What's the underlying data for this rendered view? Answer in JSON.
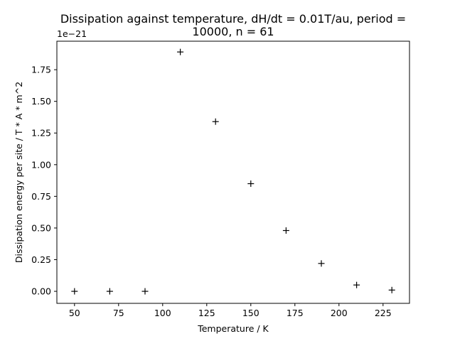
{
  "chart_data": {
    "type": "scatter",
    "title_lines": [
      "Dissipation against temperature, dH/dt = 0.01T/au, period =",
      "10000, n = 61"
    ],
    "xlabel": "Temperature / K",
    "ylabel": "Dissipation energy per site / T * A * m^2",
    "y_offset_text": "1e−21",
    "marker": "+",
    "marker_color": "#000000",
    "xlim": [
      40,
      240
    ],
    "ylim": [
      -0.095,
      1.975
    ],
    "x_ticks": [
      50,
      75,
      100,
      125,
      150,
      175,
      200,
      225
    ],
    "x_tick_labels": [
      "50",
      "75",
      "100",
      "125",
      "150",
      "175",
      "200",
      "225"
    ],
    "y_ticks": [
      0.0,
      0.25,
      0.5,
      0.75,
      1.0,
      1.25,
      1.5,
      1.75
    ],
    "y_tick_labels": [
      "0.00",
      "0.25",
      "0.50",
      "0.75",
      "1.00",
      "1.25",
      "1.50",
      "1.75"
    ],
    "grid": false,
    "legend": "none",
    "series": [
      {
        "x": [
          50,
          70,
          90,
          110,
          130,
          150,
          170,
          190,
          210,
          230
        ],
        "y": [
          0.0,
          0.0,
          0.0,
          1.89,
          1.34,
          0.85,
          0.48,
          0.22,
          0.05,
          0.01
        ]
      }
    ]
  }
}
